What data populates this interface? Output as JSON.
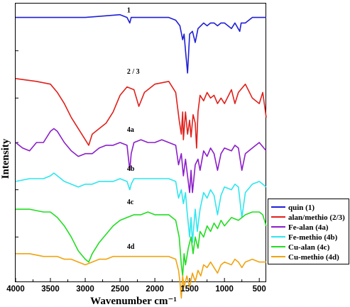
{
  "chart_data": {
    "type": "line",
    "title": "",
    "xlabel": "Wavenumber cm⁻¹",
    "ylabel": "Intensity",
    "xlim": [
      4000,
      400
    ],
    "x_reversed": true,
    "xticks": [
      4000,
      3500,
      3000,
      2500,
      2000,
      1500,
      1000,
      500
    ],
    "y_tick_labels": false,
    "grid": false,
    "legend_position": "bottom-right-outside",
    "series": [
      {
        "name": "quin (1)",
        "label": "1",
        "color": "#1f1fd6",
        "offset": 0.95,
        "points": [
          [
            4000,
            0.0
          ],
          [
            3600,
            0.0
          ],
          [
            3000,
            0.0
          ],
          [
            2500,
            0.01
          ],
          [
            2400,
            0.0
          ],
          [
            2360,
            -0.02
          ],
          [
            2340,
            0.0
          ],
          [
            2000,
            0.0
          ],
          [
            1800,
            0.0
          ],
          [
            1700,
            -0.01
          ],
          [
            1640,
            -0.03
          ],
          [
            1600,
            -0.08
          ],
          [
            1580,
            -0.06
          ],
          [
            1560,
            -0.12
          ],
          [
            1530,
            -0.2
          ],
          [
            1500,
            -0.06
          ],
          [
            1460,
            -0.05
          ],
          [
            1420,
            -0.09
          ],
          [
            1380,
            -0.04
          ],
          [
            1340,
            -0.03
          ],
          [
            1300,
            -0.02
          ],
          [
            1250,
            -0.03
          ],
          [
            1200,
            -0.02
          ],
          [
            1150,
            -0.02
          ],
          [
            1100,
            -0.03
          ],
          [
            1050,
            -0.02
          ],
          [
            1000,
            -0.02
          ],
          [
            900,
            -0.04
          ],
          [
            850,
            -0.02
          ],
          [
            780,
            -0.05
          ],
          [
            760,
            -0.02
          ],
          [
            700,
            -0.02
          ],
          [
            600,
            0.0
          ],
          [
            500,
            0.0
          ],
          [
            400,
            0.0
          ]
        ]
      },
      {
        "name": "alan/methio (2/3)",
        "label": "2 / 3",
        "color": "#e0201b",
        "offset": 0.73,
        "points": [
          [
            4000,
            0.0
          ],
          [
            3700,
            -0.01
          ],
          [
            3500,
            -0.02
          ],
          [
            3400,
            -0.05
          ],
          [
            3300,
            -0.09
          ],
          [
            3200,
            -0.14
          ],
          [
            3100,
            -0.18
          ],
          [
            3000,
            -0.22
          ],
          [
            2950,
            -0.24
          ],
          [
            2900,
            -0.2
          ],
          [
            2800,
            -0.18
          ],
          [
            2700,
            -0.16
          ],
          [
            2600,
            -0.12
          ],
          [
            2500,
            -0.06
          ],
          [
            2400,
            -0.03
          ],
          [
            2300,
            -0.04
          ],
          [
            2230,
            -0.1
          ],
          [
            2150,
            -0.05
          ],
          [
            2000,
            -0.02
          ],
          [
            1800,
            -0.01
          ],
          [
            1700,
            -0.05
          ],
          [
            1650,
            -0.15
          ],
          [
            1620,
            -0.2
          ],
          [
            1600,
            -0.12
          ],
          [
            1590,
            -0.22
          ],
          [
            1560,
            -0.12
          ],
          [
            1530,
            -0.2
          ],
          [
            1500,
            -0.15
          ],
          [
            1480,
            -0.21
          ],
          [
            1450,
            -0.13
          ],
          [
            1420,
            -0.16
          ],
          [
            1400,
            -0.25
          ],
          [
            1380,
            -0.12
          ],
          [
            1350,
            -0.06
          ],
          [
            1300,
            -0.08
          ],
          [
            1250,
            -0.05
          ],
          [
            1200,
            -0.07
          ],
          [
            1150,
            -0.06
          ],
          [
            1100,
            -0.09
          ],
          [
            1050,
            -0.07
          ],
          [
            1000,
            -0.09
          ],
          [
            900,
            -0.04
          ],
          [
            850,
            -0.09
          ],
          [
            800,
            -0.05
          ],
          [
            700,
            -0.02
          ],
          [
            600,
            -0.07
          ],
          [
            500,
            -0.09
          ],
          [
            450,
            -0.05
          ],
          [
            400,
            -0.14
          ]
        ]
      },
      {
        "name": "Fe-alan (4a)",
        "label": "4a",
        "color": "#8b1ec9",
        "offset": 0.52,
        "points": [
          [
            4000,
            -0.02
          ],
          [
            3900,
            -0.04
          ],
          [
            3800,
            -0.05
          ],
          [
            3700,
            -0.02
          ],
          [
            3600,
            -0.02
          ],
          [
            3500,
            0.02
          ],
          [
            3450,
            0.03
          ],
          [
            3400,
            0.02
          ],
          [
            3300,
            -0.02
          ],
          [
            3200,
            -0.05
          ],
          [
            3100,
            -0.07
          ],
          [
            3000,
            -0.06
          ],
          [
            2900,
            -0.06
          ],
          [
            2800,
            -0.04
          ],
          [
            2700,
            -0.03
          ],
          [
            2600,
            -0.03
          ],
          [
            2500,
            -0.02
          ],
          [
            2400,
            -0.03
          ],
          [
            2360,
            -0.12
          ],
          [
            2340,
            -0.06
          ],
          [
            2300,
            -0.02
          ],
          [
            2200,
            -0.01
          ],
          [
            2100,
            -0.02
          ],
          [
            2000,
            -0.02
          ],
          [
            1900,
            -0.01
          ],
          [
            1800,
            -0.02
          ],
          [
            1700,
            -0.03
          ],
          [
            1660,
            -0.1
          ],
          [
            1620,
            -0.06
          ],
          [
            1590,
            -0.14
          ],
          [
            1560,
            -0.08
          ],
          [
            1540,
            -0.12
          ],
          [
            1500,
            -0.2
          ],
          [
            1480,
            -0.12
          ],
          [
            1460,
            -0.2
          ],
          [
            1420,
            -0.1
          ],
          [
            1380,
            -0.08
          ],
          [
            1350,
            -0.12
          ],
          [
            1300,
            -0.05
          ],
          [
            1250,
            -0.07
          ],
          [
            1200,
            -0.04
          ],
          [
            1150,
            -0.06
          ],
          [
            1100,
            -0.12
          ],
          [
            1050,
            -0.06
          ],
          [
            1000,
            -0.04
          ],
          [
            900,
            -0.05
          ],
          [
            850,
            -0.03
          ],
          [
            800,
            -0.04
          ],
          [
            750,
            -0.12
          ],
          [
            700,
            -0.06
          ],
          [
            600,
            -0.04
          ],
          [
            500,
            -0.02
          ],
          [
            400,
            -0.05
          ]
        ]
      },
      {
        "name": "Fe-methio (4b)",
        "label": "4b",
        "color": "#2ee6ee",
        "offset": 0.38,
        "points": [
          [
            4000,
            -0.02
          ],
          [
            3800,
            -0.01
          ],
          [
            3600,
            -0.01
          ],
          [
            3500,
            0.0
          ],
          [
            3450,
            0.01
          ],
          [
            3400,
            0.0
          ],
          [
            3300,
            -0.02
          ],
          [
            3200,
            -0.03
          ],
          [
            3100,
            -0.04
          ],
          [
            3000,
            -0.03
          ],
          [
            2900,
            -0.03
          ],
          [
            2800,
            -0.02
          ],
          [
            2700,
            -0.02
          ],
          [
            2600,
            -0.02
          ],
          [
            2500,
            -0.01
          ],
          [
            2400,
            -0.02
          ],
          [
            2360,
            -0.05
          ],
          [
            2340,
            -0.03
          ],
          [
            2300,
            -0.01
          ],
          [
            2200,
            -0.01
          ],
          [
            2000,
            -0.01
          ],
          [
            1800,
            -0.01
          ],
          [
            1700,
            -0.02
          ],
          [
            1660,
            -0.08
          ],
          [
            1620,
            -0.05
          ],
          [
            1590,
            -0.1
          ],
          [
            1560,
            -0.06
          ],
          [
            1540,
            -0.12
          ],
          [
            1500,
            -0.22
          ],
          [
            1480,
            -0.15
          ],
          [
            1460,
            -0.24
          ],
          [
            1420,
            -0.12
          ],
          [
            1390,
            -0.2
          ],
          [
            1350,
            -0.12
          ],
          [
            1300,
            -0.06
          ],
          [
            1250,
            -0.08
          ],
          [
            1200,
            -0.05
          ],
          [
            1150,
            -0.07
          ],
          [
            1100,
            -0.14
          ],
          [
            1050,
            -0.07
          ],
          [
            1000,
            -0.04
          ],
          [
            900,
            -0.05
          ],
          [
            850,
            -0.03
          ],
          [
            800,
            -0.04
          ],
          [
            750,
            -0.15
          ],
          [
            700,
            -0.06
          ],
          [
            600,
            -0.03
          ],
          [
            500,
            -0.02
          ],
          [
            400,
            -0.04
          ]
        ]
      },
      {
        "name": "Cu-alan (4c)",
        "label": "4c",
        "color": "#22dd22",
        "offset": 0.26,
        "points": [
          [
            4000,
            0.0
          ],
          [
            3800,
            0.0
          ],
          [
            3600,
            -0.01
          ],
          [
            3500,
            -0.01
          ],
          [
            3400,
            -0.03
          ],
          [
            3300,
            -0.06
          ],
          [
            3200,
            -0.1
          ],
          [
            3100,
            -0.15
          ],
          [
            3000,
            -0.18
          ],
          [
            2950,
            -0.19
          ],
          [
            2900,
            -0.16
          ],
          [
            2800,
            -0.12
          ],
          [
            2700,
            -0.09
          ],
          [
            2600,
            -0.06
          ],
          [
            2500,
            -0.04
          ],
          [
            2400,
            -0.03
          ],
          [
            2300,
            -0.02
          ],
          [
            2200,
            -0.02
          ],
          [
            2100,
            -0.01
          ],
          [
            2000,
            -0.02
          ],
          [
            1900,
            -0.02
          ],
          [
            1800,
            -0.02
          ],
          [
            1700,
            -0.04
          ],
          [
            1650,
            -0.1
          ],
          [
            1620,
            -0.2
          ],
          [
            1600,
            -0.24
          ],
          [
            1580,
            -0.16
          ],
          [
            1560,
            -0.2
          ],
          [
            1520,
            -0.14
          ],
          [
            1480,
            -0.1
          ],
          [
            1450,
            -0.16
          ],
          [
            1420,
            -0.1
          ],
          [
            1380,
            -0.14
          ],
          [
            1350,
            -0.08
          ],
          [
            1300,
            -0.1
          ],
          [
            1250,
            -0.06
          ],
          [
            1200,
            -0.08
          ],
          [
            1150,
            -0.05
          ],
          [
            1100,
            -0.07
          ],
          [
            1050,
            -0.04
          ],
          [
            1000,
            -0.06
          ],
          [
            900,
            -0.03
          ],
          [
            800,
            -0.04
          ],
          [
            700,
            -0.02
          ],
          [
            600,
            -0.01
          ],
          [
            500,
            -0.01
          ],
          [
            450,
            -0.02
          ],
          [
            400,
            -0.06
          ]
        ]
      },
      {
        "name": "Cu-methio (4d)",
        "label": "4d",
        "color": "#f0a410",
        "offset": 0.1,
        "points": [
          [
            4000,
            0.0
          ],
          [
            3800,
            0.0
          ],
          [
            3600,
            -0.01
          ],
          [
            3400,
            -0.01
          ],
          [
            3300,
            -0.02
          ],
          [
            3200,
            -0.02
          ],
          [
            3100,
            -0.03
          ],
          [
            3000,
            -0.04
          ],
          [
            2900,
            -0.03
          ],
          [
            2800,
            -0.02
          ],
          [
            2700,
            -0.02
          ],
          [
            2600,
            -0.01
          ],
          [
            2500,
            -0.01
          ],
          [
            2400,
            -0.01
          ],
          [
            2300,
            -0.01
          ],
          [
            2200,
            -0.01
          ],
          [
            2000,
            -0.01
          ],
          [
            1800,
            -0.01
          ],
          [
            1700,
            -0.02
          ],
          [
            1660,
            -0.06
          ],
          [
            1640,
            -0.1
          ],
          [
            1620,
            -0.16
          ],
          [
            1600,
            -0.08
          ],
          [
            1580,
            -0.12
          ],
          [
            1540,
            -0.08
          ],
          [
            1500,
            -0.12
          ],
          [
            1460,
            -0.07
          ],
          [
            1420,
            -0.1
          ],
          [
            1380,
            -0.06
          ],
          [
            1340,
            -0.08
          ],
          [
            1300,
            -0.04
          ],
          [
            1250,
            -0.05
          ],
          [
            1200,
            -0.03
          ],
          [
            1150,
            -0.05
          ],
          [
            1100,
            -0.07
          ],
          [
            1050,
            -0.04
          ],
          [
            1000,
            -0.03
          ],
          [
            900,
            -0.04
          ],
          [
            850,
            -0.02
          ],
          [
            800,
            -0.03
          ],
          [
            750,
            -0.05
          ],
          [
            700,
            -0.03
          ],
          [
            600,
            -0.02
          ],
          [
            500,
            -0.03
          ],
          [
            400,
            -0.03
          ]
        ]
      }
    ]
  }
}
